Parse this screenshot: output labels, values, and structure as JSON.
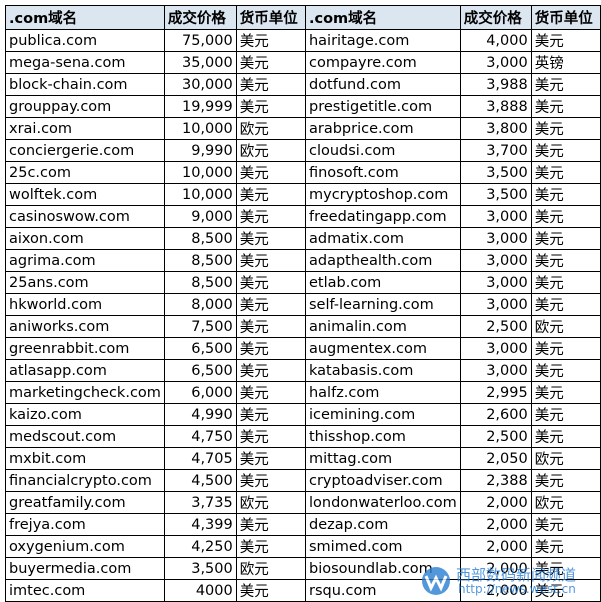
{
  "header": [
    ".com域名",
    "成交价格",
    "货币单位",
    ".com域名",
    "成交价格",
    "货币单位"
  ],
  "rows": [
    [
      "publica.com",
      "75,000",
      "美元",
      "hairitage.com",
      "4,000",
      "美元"
    ],
    [
      "mega-sena.com",
      "35,000",
      "美元",
      "compayre.com",
      "3,000",
      "英镑"
    ],
    [
      "block-chain.com",
      "30,000",
      "美元",
      "dotfund.com",
      "3,988",
      "美元"
    ],
    [
      "grouppay.com",
      "19,999",
      "美元",
      "prestigetitle.com",
      "3,888",
      "美元"
    ],
    [
      "xrai.com",
      "10,000",
      "欧元",
      "arabprice.com",
      "3,800",
      "美元"
    ],
    [
      "conciergerie.com",
      "9,990",
      "欧元",
      "cloudsi.com",
      "3,700",
      "美元"
    ],
    [
      "25c.com",
      "10,000",
      "美元",
      "finosoft.com",
      "3,500",
      "美元"
    ],
    [
      "wolftek.com",
      "10,000",
      "美元",
      "mycryptoshop.com",
      "3,500",
      "美元"
    ],
    [
      "casinoswow.com",
      "9,000",
      "美元",
      "freedatingapp.com",
      "3,000",
      "美元"
    ],
    [
      "aixon.com",
      "8,500",
      "美元",
      "admatix.com",
      "3,000",
      "美元"
    ],
    [
      "agrima.com",
      "8,500",
      "美元",
      "adapthealth.com",
      "3,000",
      "美元"
    ],
    [
      "25ans.com",
      "8,500",
      "美元",
      "etlab.com",
      "3,000",
      "美元"
    ],
    [
      "hkworld.com",
      "8,000",
      "美元",
      "self-learning.com",
      "3,000",
      "美元"
    ],
    [
      "aniworks.com",
      "7,500",
      "美元",
      "animalin.com",
      "2,500",
      "欧元"
    ],
    [
      "greenrabbit.com",
      "6,500",
      "美元",
      "augmentex.com",
      "3,000",
      "美元"
    ],
    [
      "atlasapp.com",
      "6,500",
      "美元",
      "katabasis.com",
      "3,000",
      "美元"
    ],
    [
      "marketingcheck.com",
      "6,000",
      "美元",
      "halfz.com",
      "2,995",
      "美元"
    ],
    [
      "kaizo.com",
      "4,990",
      "美元",
      "icemining.com",
      "2,600",
      "美元"
    ],
    [
      "medscout.com",
      "4,750",
      "美元",
      "thisshop.com",
      "2,500",
      "美元"
    ],
    [
      "mxbit.com",
      "4,705",
      "美元",
      "mittag.com",
      "2,050",
      "欧元"
    ],
    [
      "financialcrypto.com",
      "4,500",
      "美元",
      "cryptoadviser.com",
      "2,388",
      "美元"
    ],
    [
      "greatfamily.com",
      "3,735",
      "欧元",
      "londonwaterloo.com",
      "2,000",
      "欧元"
    ],
    [
      "frejya.com",
      "4,399",
      "美元",
      "dezap.com",
      "2,000",
      "美元"
    ],
    [
      "oxygenium.com",
      "4,250",
      "美元",
      "smimed.com",
      "2,000",
      "美元"
    ],
    [
      "buyermedia.com",
      "3,500",
      "欧元",
      "biosoundlab.com",
      "2,000",
      "美元"
    ],
    [
      "imtec.com",
      "4000",
      "美元",
      "rsqu.com",
      "2,000",
      "美元"
    ]
  ],
  "watermark": {
    "title": "西部数码新闻频道",
    "url": "http://news.west.cn"
  }
}
